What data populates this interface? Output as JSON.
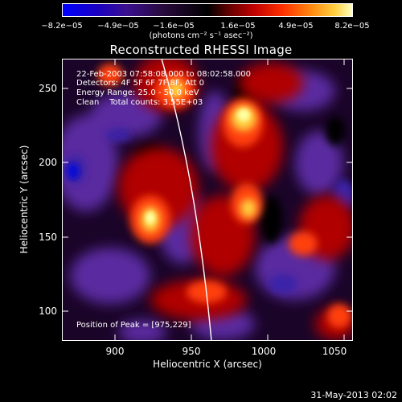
{
  "colorbar": {
    "tick_labels": [
      "−8.2e−05",
      "−4.9e−05",
      "−1.6e−05",
      "1.6e−05",
      "4.9e−05",
      "8.2e−05"
    ],
    "units": "(photons cm⁻² s⁻¹ asec⁻²)"
  },
  "title": "Reconstructed RHESSI Image",
  "info": {
    "time_range": "22-Feb-2003 07:58:08.000 to 08:02:58.000",
    "detectors": "Detectors: 4F 5F 6F 7F 8F, Att 0",
    "energy": "Energy Range: 25.0 - 50.0 keV",
    "clean": "Clean    Total counts: 3.55E+03",
    "peak": "Position of Peak = [975,229]"
  },
  "axes": {
    "xlabel": "Heliocentric X (arcsec)",
    "ylabel": "Heliocentric Y (arcsec)",
    "x_ticks": [
      "900",
      "950",
      "1000",
      "1050"
    ],
    "y_ticks": [
      "250",
      "200",
      "150",
      "100"
    ],
    "x_range": [
      862,
      1054
    ],
    "y_range": [
      78,
      268
    ],
    "x_tick_values": [
      900,
      950,
      1000,
      1050
    ],
    "y_tick_values": [
      250,
      200,
      150,
      100
    ]
  },
  "footer": "31-May-2013 02:02",
  "colors": {
    "colormap": [
      "#0000ff",
      "#3a1a9a",
      "#000000",
      "#8a0000",
      "#ff2a00",
      "#ff9a1a",
      "#ffffa0"
    ]
  }
}
